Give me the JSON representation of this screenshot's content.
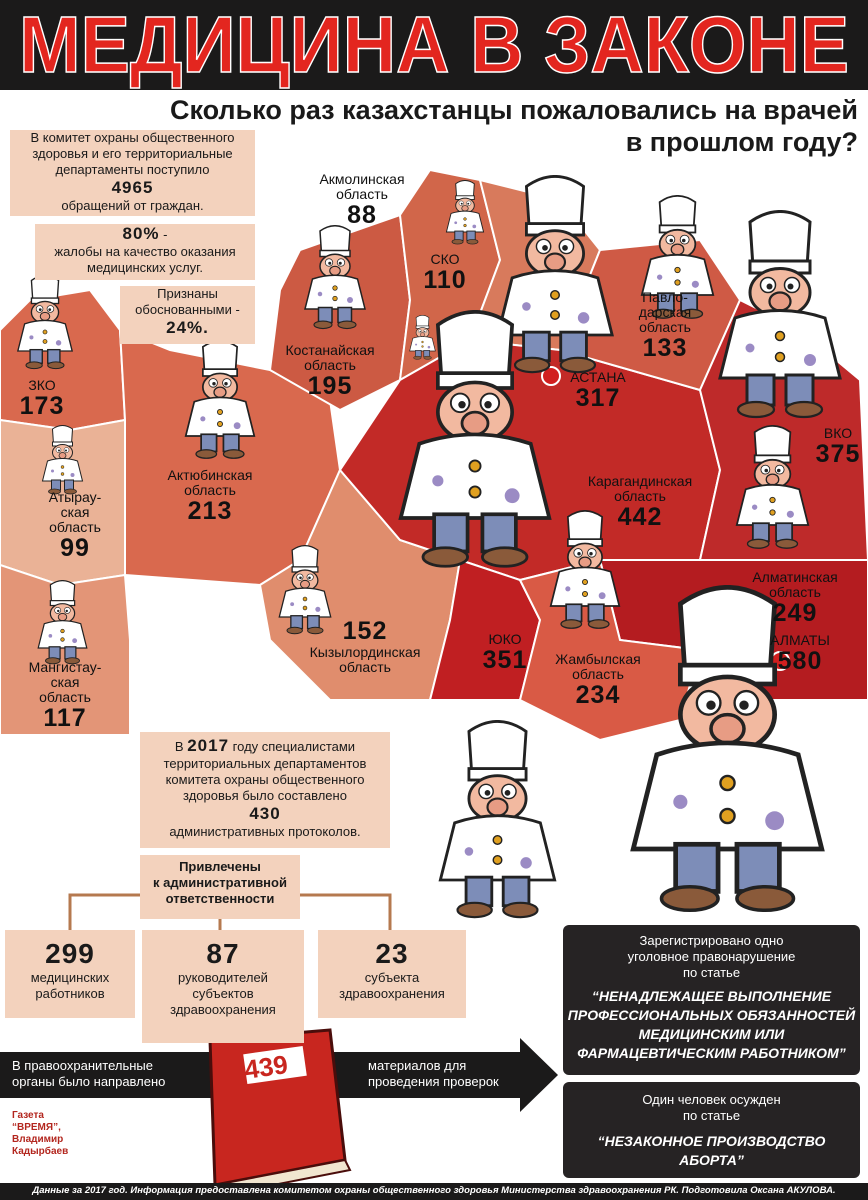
{
  "header": {
    "title": "МЕДИЦИНА В ЗАКОНЕ",
    "subtitle": [
      "Сколько раз казахстанцы пожаловались на врачей",
      "в прошлом году?"
    ]
  },
  "intro": {
    "complaints": {
      "lines": [
        "В комитет охраны общественного",
        "здоровья и его территориальные",
        "департаменты поступило"
      ],
      "value": 4965,
      "after": "обращений от граждан."
    },
    "quality": {
      "value": "80%",
      "dash": "-",
      "lines": [
        "жалобы на качество оказания",
        "медицинских услуг."
      ]
    },
    "justified": {
      "lines": [
        "Признаны",
        "обоснованными -"
      ],
      "value": "24%."
    }
  },
  "regions": [
    {
      "label": [
        "Акмолинская",
        "область"
      ],
      "value": 88
    },
    {
      "label": [
        "СКО"
      ],
      "value": 110
    },
    {
      "label": [
        "Павло-",
        "дарская",
        "область"
      ],
      "value": 133
    },
    {
      "label": [
        "АСТАНА"
      ],
      "value": 317
    },
    {
      "label": [
        "Костанайская",
        "область"
      ],
      "value": 195
    },
    {
      "label": [
        "ЗКО"
      ],
      "value": 173
    },
    {
      "label": [
        "Актюбинская",
        "область"
      ],
      "value": 213
    },
    {
      "label": [
        "Атырау-",
        "ская",
        "область"
      ],
      "value": 99
    },
    {
      "label": [
        "ВКО"
      ],
      "value": 375
    },
    {
      "label": [
        "Карагандинская",
        "область"
      ],
      "value": 442
    },
    {
      "label": [
        "Алматинская",
        "область"
      ],
      "value": 249
    },
    {
      "label": [
        "АЛМАТЫ"
      ],
      "value": 580
    },
    {
      "label": [
        "Кызылординская",
        "область"
      ],
      "value": 152
    },
    {
      "label": [
        "Мангистау-",
        "ская",
        "область"
      ],
      "value": 117
    },
    {
      "label": [
        "ЮКО"
      ],
      "value": 351
    },
    {
      "label": [
        "Жамбылская",
        "область"
      ],
      "value": 234
    }
  ],
  "protocols": {
    "first": "В",
    "year": 2017,
    "first_rest": "году специалистами",
    "lines": [
      "территориальных департаментов",
      "комитета охраны общественного",
      "здоровья было составлено"
    ],
    "value": 430,
    "after": "административных протоколов."
  },
  "liability": {
    "heading": [
      "Привлечены",
      "к административной",
      "ответственности"
    ],
    "items": [
      {
        "value": 299,
        "label": [
          "медицинских",
          "работников"
        ]
      },
      {
        "value": 87,
        "label": [
          "руководителей",
          "субъектов",
          "здравоохранения"
        ]
      },
      {
        "value": 23,
        "label": [
          "субъекта",
          "здравоохранения"
        ]
      }
    ]
  },
  "criminal": {
    "lines": [
      "Зарегистрировано одно",
      "уголовное правонарушение",
      "по статье"
    ],
    "article": [
      "“Ненадлежащее выполнение",
      "профессиональных обязанностей",
      "медицинским или",
      "фармацевтическим работником”"
    ]
  },
  "conviction": {
    "lines": [
      "Один человек осужден",
      "по статье"
    ],
    "article": [
      "“Незаконное производство",
      "аборта”"
    ]
  },
  "referral": {
    "before": [
      "В правоохранительные",
      "органы было направлено"
    ],
    "value": 439,
    "after": [
      "материалов для",
      "проведения проверок"
    ]
  },
  "credit": [
    "Газета",
    "“ВРЕМЯ”,",
    "Владимир",
    "Кадырбаев"
  ],
  "footer": "Данные за 2017 год. Информация предоставлена комитетом охраны общественного здоровья Министерства здравоохранения РК. Подготовила Оксана АКУЛОВА."
}
